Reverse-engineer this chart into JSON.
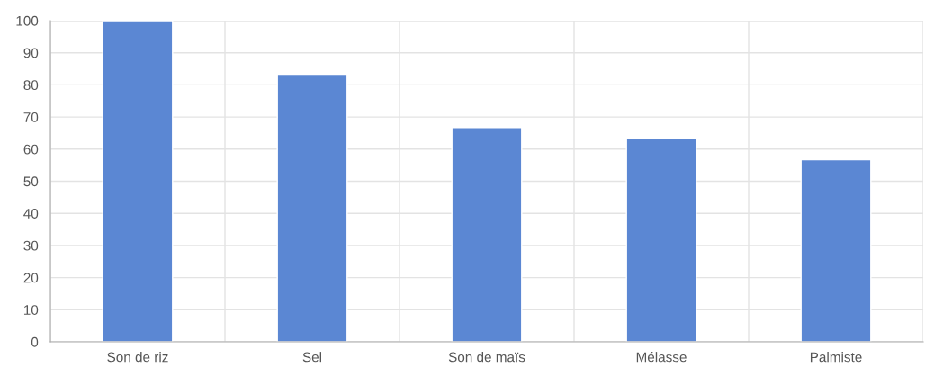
{
  "chart_data": {
    "type": "bar",
    "categories": [
      "Son de riz",
      "Sel",
      "Son de maïs",
      "Mélasse",
      "Palmiste"
    ],
    "values": [
      100,
      83.3,
      66.7,
      63.3,
      56.7
    ],
    "color": "#5b87d3",
    "ylim": [
      0,
      100
    ],
    "yticks": [
      0,
      10,
      20,
      30,
      40,
      50,
      60,
      70,
      80,
      90,
      100
    ],
    "grid": true
  }
}
